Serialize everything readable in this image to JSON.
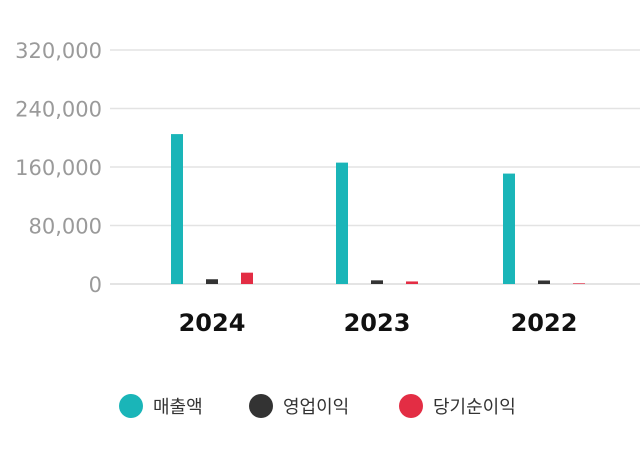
{
  "chart_data": {
    "type": "bar",
    "categories": [
      "2024",
      "2023",
      "2022"
    ],
    "series": [
      {
        "name": "매출액",
        "color": "#1ab5b8",
        "values": [
          205000,
          166000,
          151000
        ]
      },
      {
        "name": "영업이익",
        "color": "#333333",
        "values": [
          6500,
          5000,
          4800
        ]
      },
      {
        "name": "당기순이익",
        "color": "#e32d44",
        "values": [
          15500,
          3500,
          900
        ]
      }
    ],
    "y_ticks": [
      "0",
      "80,000",
      "160,000",
      "240,000",
      "320,000"
    ],
    "ylim": [
      0,
      320000
    ],
    "grid": true,
    "legend_position": "bottom"
  }
}
